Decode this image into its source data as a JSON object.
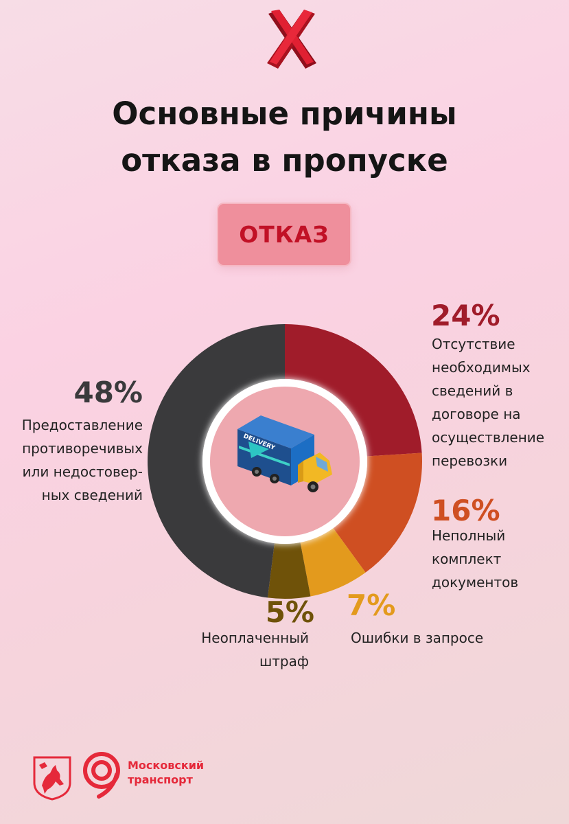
{
  "title_lines": [
    "Основные причины",
    "отказа в пропуске"
  ],
  "badge": "ОТКАЗ",
  "chart_data": {
    "type": "pie",
    "categories": [
      "Отсутствие необходимых сведений в договоре на осуществление перевозки",
      "Неполный комплект документов",
      "Ошибки в запросе",
      "Неоплаченный штраф",
      "Предоставление противоречивых или недостоверных сведений"
    ],
    "values": [
      24,
      16,
      7,
      5,
      48
    ],
    "colors": [
      "#a01c2a",
      "#cf4f22",
      "#e39a1d",
      "#6f5209",
      "#3a3a3c"
    ],
    "center_icon": "delivery-truck-icon"
  },
  "segments": [
    {
      "pct": "24%",
      "lines": [
        "Отсутствие",
        "необходимых",
        "сведений в",
        "договоре на",
        "осуществление",
        "перевозки"
      ]
    },
    {
      "pct": "16%",
      "lines": [
        "Неполный",
        "комплект",
        "документов"
      ]
    },
    {
      "pct": "7%",
      "lines": [
        "Ошибки в запросе"
      ]
    },
    {
      "pct": "5%",
      "lines": [
        "Неоплаченный",
        "штраф"
      ]
    },
    {
      "pct": "48%",
      "lines": [
        "Предоставление",
        "противоречивых",
        "или недостовер-",
        "ных сведений"
      ]
    }
  ],
  "logo": {
    "line1": "Московский",
    "line2": "транспорт"
  }
}
